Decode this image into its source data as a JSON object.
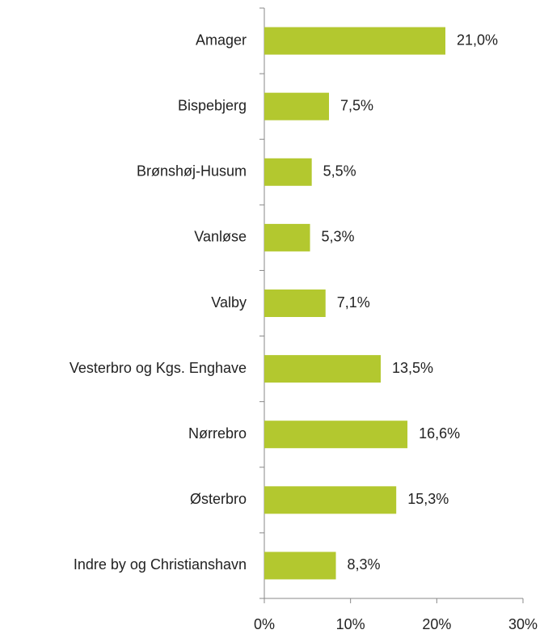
{
  "chart_data": {
    "type": "hbar",
    "categories": [
      "Amager",
      "Bispebjerg",
      "Brønshøj-Husum",
      "Vanløse",
      "Valby",
      "Vesterbro og Kgs. Enghave",
      "Nørrebro",
      "Østerbro",
      "Indre by og Christianshavn"
    ],
    "values": [
      21.0,
      7.5,
      5.5,
      5.3,
      7.1,
      13.5,
      16.6,
      15.3,
      8.3
    ],
    "value_labels": [
      "21,0%",
      "7,5%",
      "5,5%",
      "5,3%",
      "7,1%",
      "13,5%",
      "16,6%",
      "15,3%",
      "8,3%"
    ],
    "color": "#b3c82f",
    "xlim": [
      0,
      30
    ],
    "xticks": [
      {
        "value": 0,
        "label": "0%"
      },
      {
        "value": 10,
        "label": "10%"
      },
      {
        "value": 20,
        "label": "20%"
      },
      {
        "value": 30,
        "label": "30%"
      }
    ],
    "grid": false
  }
}
